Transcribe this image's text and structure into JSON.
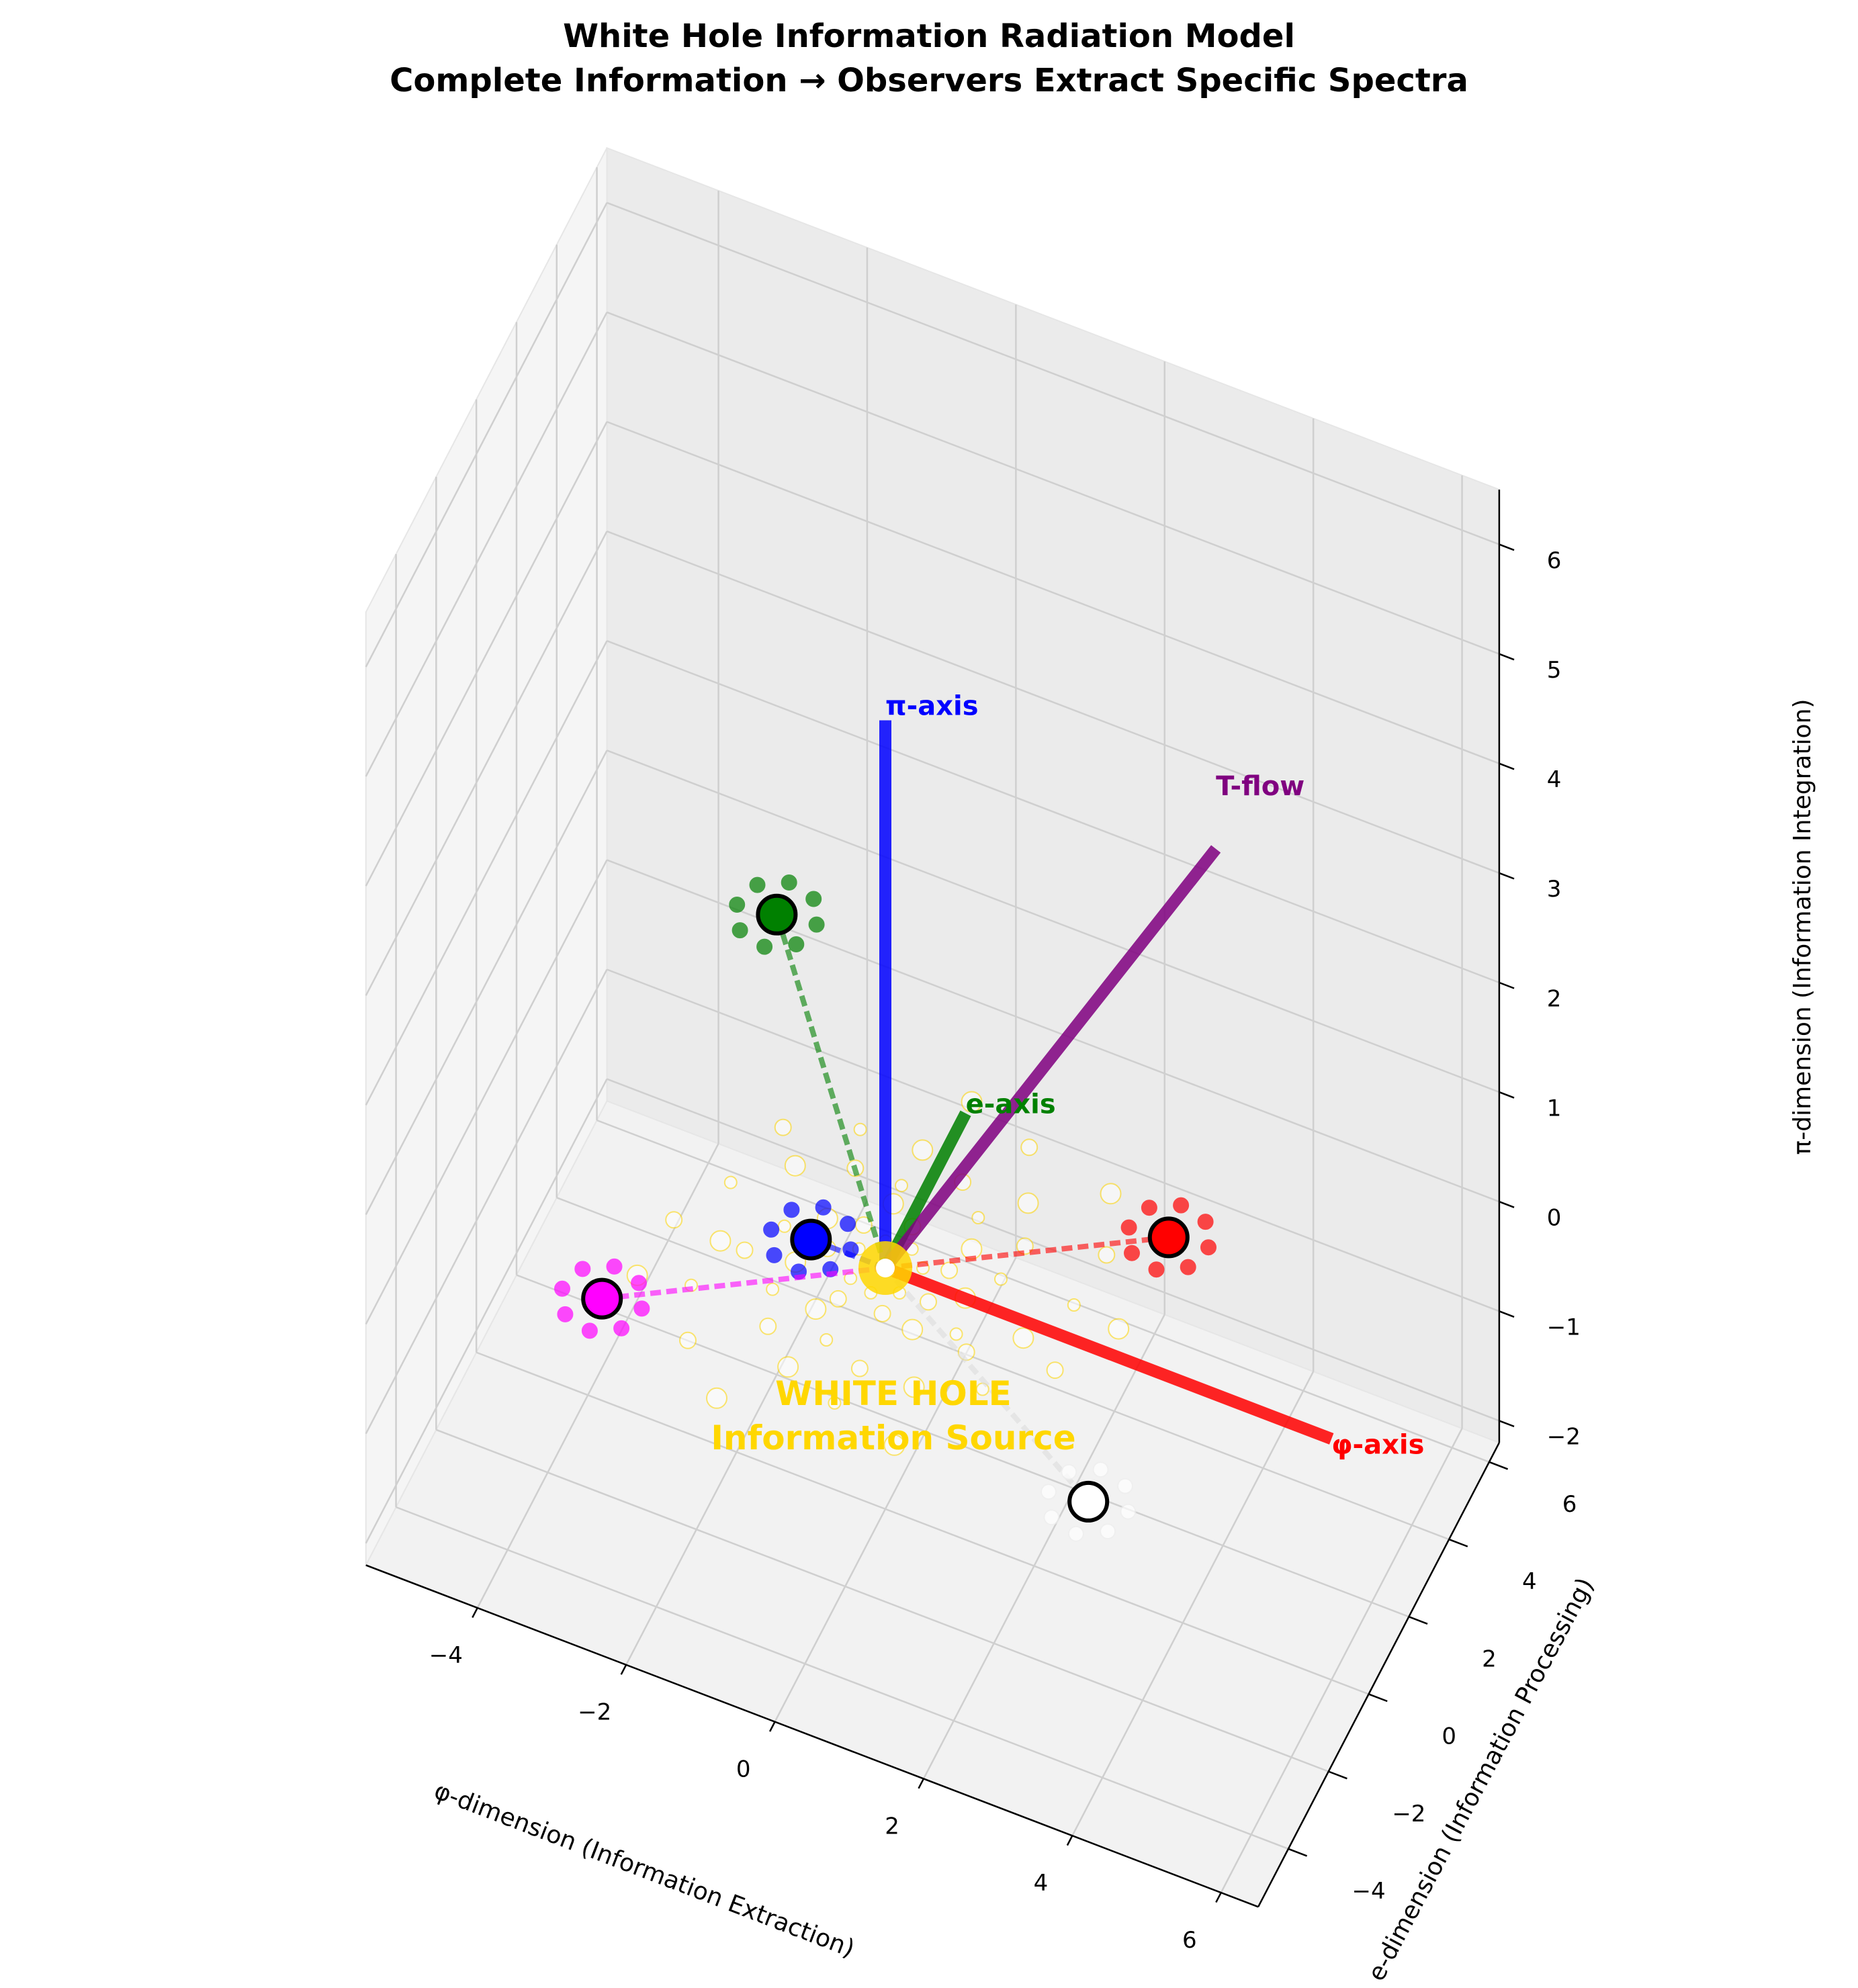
{
  "chart_data": {
    "type": "scatter3d",
    "title": "White Hole Information Radiation Model\nComplete Information → Observers Extract Specific Spectra",
    "xlabel": "φ-dimension (Information Extraction)",
    "ylabel": "e-dimension (Information Processing)",
    "zlabel": "π-dimension (Information Integration)",
    "xlim": [
      -5.5,
      6.5
    ],
    "ylim": [
      -5.5,
      6.5
    ],
    "zlim": [
      -2.2,
      6.5
    ],
    "xticks": [
      "−4",
      "−2",
      "0",
      "2",
      "4",
      "6"
    ],
    "yticks": [
      "−4",
      "−2",
      "0",
      "2",
      "4",
      "6"
    ],
    "zticks": [
      "−2",
      "−1",
      "0",
      "1",
      "2",
      "3",
      "4",
      "5",
      "6"
    ],
    "grid": true,
    "source": {
      "x": 0,
      "y": 0,
      "z": 0,
      "label": "WHITE HOLE\nInformation Source",
      "color": "#FFD700"
    },
    "axes_vectors": [
      {
        "label": "φ-axis",
        "color": "#FF0000",
        "x": 6,
        "y": 0,
        "z": 0
      },
      {
        "label": "e-axis",
        "color": "#008000",
        "x": 0,
        "y": 4,
        "z": 0
      },
      {
        "label": "π-axis",
        "color": "#0000FF",
        "x": 0,
        "y": 0,
        "z": 5
      },
      {
        "label": "T-flow",
        "color": "#800080",
        "x": 3.5,
        "y": 3.5,
        "z": 3.5
      }
    ],
    "observers": [
      {
        "color": "#FF0000",
        "x": 3,
        "y": 3,
        "z": 0
      },
      {
        "color": "#008000",
        "x": -2,
        "y": 2,
        "z": 2
      },
      {
        "color": "#0000FF",
        "x": -1,
        "y": 0,
        "z": 0
      },
      {
        "color": "#FF00FF",
        "x": -3,
        "y": -3,
        "z": 0
      },
      {
        "color": "#FFFFFF",
        "x": 3,
        "y": -1,
        "z": -1
      }
    ]
  }
}
